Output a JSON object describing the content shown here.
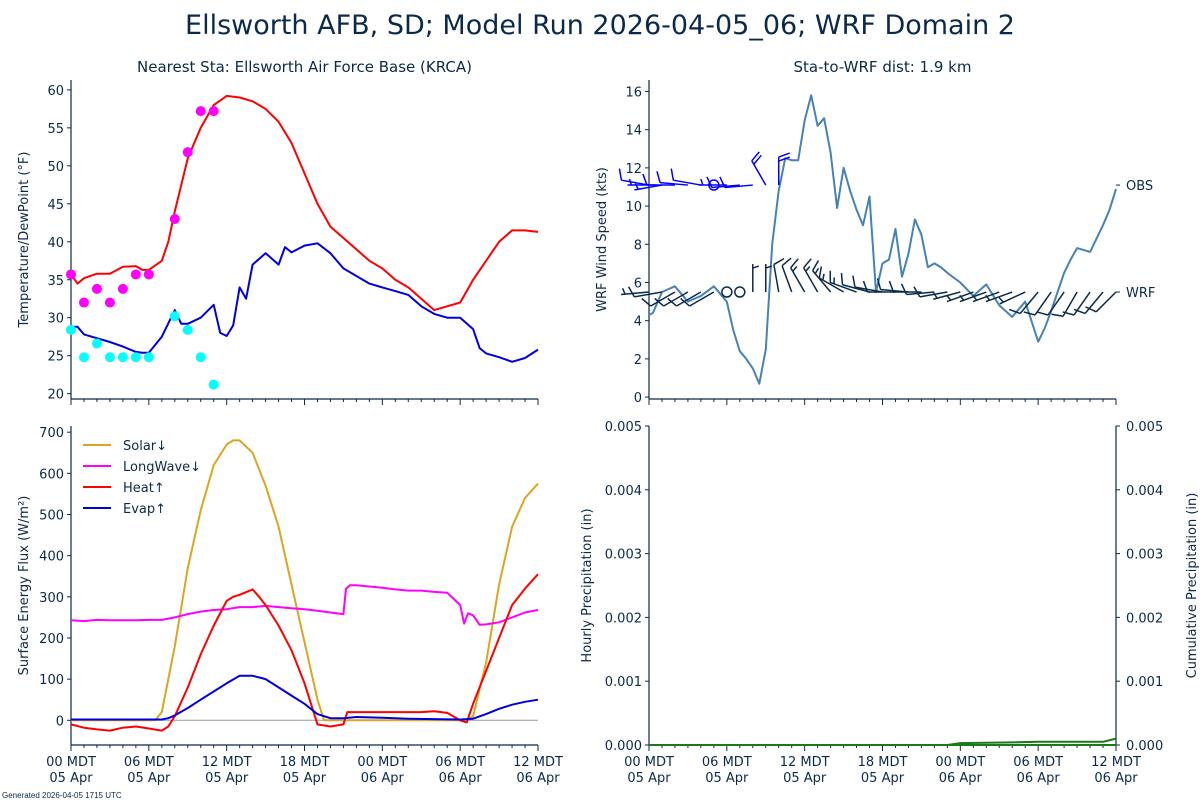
{
  "title": "Ellsworth AFB, SD; Model Run 2026-04-05_06; WRF Domain 2",
  "footer": "Generated 2026-04-05 1715 UTC",
  "colors": {
    "text": "#0b2a4a",
    "temp": "#ff0000",
    "dewpoint": "#0000dd",
    "obs_temp": "#ff00ff",
    "obs_dew": "#00ffff",
    "wind_line": "#4682b4",
    "obs_barb": "#0000ff",
    "wrf_barb": "#0b2a4a",
    "solar": "#daa520",
    "longwave": "#ff00ff",
    "heat": "#ff0000",
    "evap": "#0000dd",
    "zero_line": "#999999",
    "precip": "#1a7a1a"
  },
  "x_axis": {
    "hours_range": [
      0,
      36
    ],
    "ticks": [
      {
        "h": 0,
        "line1": "00 MDT",
        "line2": "05 Apr"
      },
      {
        "h": 6,
        "line1": "06 MDT",
        "line2": "05 Apr"
      },
      {
        "h": 12,
        "line1": "12 MDT",
        "line2": "05 Apr"
      },
      {
        "h": 18,
        "line1": "18 MDT",
        "line2": "05 Apr"
      },
      {
        "h": 24,
        "line1": "00 MDT",
        "line2": "06 Apr"
      },
      {
        "h": 30,
        "line1": "06 MDT",
        "line2": "06 Apr"
      },
      {
        "h": 36,
        "line1": "12 MDT",
        "line2": "06 Apr"
      }
    ]
  },
  "chart_data": [
    {
      "id": "temp-dew",
      "type": "line",
      "title": "Nearest Sta: Ellsworth Air Force Base (KRCA)",
      "xlabel": "",
      "ylabel": "Temperature/DewPoint (°F)",
      "ylim": [
        19.3,
        61.3
      ],
      "yticks": [
        20,
        25,
        30,
        35,
        40,
        45,
        50,
        55,
        60
      ],
      "series": [
        {
          "name": "WRF Temperature",
          "color_key": "temp",
          "x": [
            0,
            0.5,
            1,
            2,
            3,
            4,
            5,
            5.5,
            6,
            7,
            7.5,
            8,
            9,
            10,
            11,
            12,
            13,
            14,
            15,
            16,
            17,
            18,
            19,
            20,
            21,
            22,
            23,
            24,
            25,
            26,
            27,
            28,
            29,
            30,
            30.5,
            31,
            32,
            33,
            34,
            35,
            36
          ],
          "y": [
            35.7,
            34.5,
            35.2,
            35.8,
            35.8,
            36.7,
            36.8,
            36.3,
            36.3,
            37.5,
            40,
            44,
            51,
            55,
            58,
            59.2,
            59,
            58.5,
            57.5,
            55.8,
            53,
            49,
            45,
            42,
            40.5,
            39,
            37.5,
            36.5,
            35,
            34,
            32.5,
            31,
            31.5,
            32,
            33.5,
            35,
            37.5,
            40,
            41.5,
            41.5,
            41.3
          ]
        },
        {
          "name": "WRF DewPoint",
          "color_key": "dewpoint",
          "x": [
            0,
            0.5,
            1,
            2,
            3,
            4,
            5,
            5.5,
            6,
            7,
            8,
            8.5,
            9,
            10,
            11,
            11.5,
            12,
            12.5,
            13,
            13.5,
            14,
            15,
            16,
            16.5,
            17,
            18,
            19,
            20,
            21,
            22,
            23,
            24,
            25,
            26,
            27,
            28,
            29,
            30,
            31,
            31.5,
            32,
            33,
            34,
            35,
            36
          ],
          "y": [
            28.8,
            28.8,
            27.8,
            27.3,
            26.8,
            26.2,
            25.5,
            25.4,
            25.4,
            27.5,
            31,
            29.2,
            29.2,
            30,
            31.7,
            28,
            27.6,
            29,
            34,
            32.5,
            37,
            38.5,
            37,
            39.3,
            38.6,
            39.5,
            39.8,
            38.5,
            36.5,
            35.5,
            34.5,
            34,
            33.5,
            33,
            31.5,
            30.5,
            30,
            30,
            28.5,
            26,
            25.3,
            24.8,
            24.2,
            24.7,
            25.8
          ]
        },
        {
          "name": "Obs Temperature",
          "color_key": "obs_temp",
          "marker": "o",
          "x": [
            0,
            1,
            2,
            3,
            4,
            5,
            6,
            8,
            9,
            10,
            11
          ],
          "y": [
            35.7,
            32,
            33.8,
            32,
            33.8,
            35.7,
            35.7,
            43,
            51.8,
            57.2,
            57.2
          ]
        },
        {
          "name": "Obs DewPoint",
          "color_key": "obs_dew",
          "marker": "o",
          "x": [
            0,
            1,
            2,
            3,
            4,
            5,
            6,
            8,
            9,
            10,
            11
          ],
          "y": [
            28.4,
            24.8,
            26.6,
            24.8,
            24.8,
            24.8,
            24.8,
            30.2,
            28.4,
            24.8,
            21.2
          ]
        }
      ]
    },
    {
      "id": "wind",
      "type": "line",
      "title": "Sta-to-WRF dist: 1.9 km",
      "xlabel": "",
      "ylabel": "WRF Wind Speed (kts)",
      "ylim": [
        -0.1,
        16.6
      ],
      "yticks": [
        0,
        2,
        4,
        6,
        8,
        10,
        12,
        14,
        16
      ],
      "right_labels": [
        {
          "label": "OBS",
          "y": 11.1
        },
        {
          "label": "WRF",
          "y": 5.5
        }
      ],
      "series": [
        {
          "name": "WRF Wind Speed",
          "color_key": "wind_line",
          "x": [
            0,
            0.3,
            1,
            2,
            3,
            4,
            5,
            6,
            6.5,
            7,
            7.5,
            8,
            8.5,
            9,
            9.5,
            10,
            10.5,
            11,
            11.5,
            12,
            12.5,
            13,
            13.5,
            14,
            14.5,
            15,
            15.5,
            16,
            16.5,
            17,
            17.5,
            18,
            18.5,
            19,
            19.5,
            20,
            20.5,
            21,
            21.5,
            22,
            22.5,
            23,
            24,
            25,
            26,
            27,
            28,
            29,
            30,
            30.5,
            31,
            31.5,
            32,
            32.5,
            33,
            34,
            35,
            35.5,
            36
          ],
          "y": [
            4.3,
            4.4,
            5.5,
            5.8,
            5.0,
            5.3,
            5.8,
            5.0,
            3.5,
            2.4,
            2.0,
            1.5,
            0.7,
            2.5,
            8.0,
            10.8,
            12.5,
            12.4,
            12.4,
            14.5,
            15.8,
            14.2,
            14.6,
            12.8,
            9.9,
            12.0,
            10.8,
            9.8,
            9.0,
            10.5,
            5.5,
            7.0,
            7.2,
            8.8,
            6.3,
            7.5,
            9.3,
            8.5,
            6.8,
            7.0,
            6.8,
            6.5,
            6.0,
            5.3,
            5.9,
            4.8,
            4.2,
            5.0,
            2.9,
            3.6,
            4.5,
            5.5,
            6.5,
            7.2,
            7.8,
            7.6,
            9.0,
            9.8,
            10.9
          ]
        },
        {
          "name": "Obs Wind Barbs",
          "color_key": "obs_barb",
          "kind": "barbs",
          "x": [
            0,
            0.5,
            1,
            2,
            3,
            4,
            5,
            6,
            7,
            8,
            9,
            10,
            11
          ],
          "speed_kts": [
            10,
            5,
            5,
            10,
            10,
            10,
            0,
            5,
            10,
            10,
            20,
            20,
            null
          ],
          "direction_deg": [
            280,
            270,
            260,
            270,
            275,
            280,
            0,
            270,
            265,
            265,
            330,
            360,
            null
          ]
        },
        {
          "name": "WRF Wind Barbs",
          "color_key": "wrf_barb",
          "kind": "barbs",
          "x": [
            0,
            1,
            2,
            3,
            4,
            5,
            6,
            7,
            8,
            9,
            10,
            11,
            12,
            13,
            14,
            15,
            16,
            17,
            18,
            19,
            20,
            21,
            22,
            23,
            24,
            25,
            26,
            27,
            28,
            29,
            30,
            31,
            32,
            33,
            34,
            35,
            36
          ],
          "speed_kts": [
            5,
            10,
            10,
            10,
            10,
            10,
            0,
            0,
            5,
            5,
            10,
            10,
            15,
            15,
            15,
            15,
            15,
            10,
            10,
            10,
            10,
            10,
            10,
            10,
            5,
            5,
            5,
            5,
            5,
            5,
            10,
            10,
            10,
            10,
            10,
            10,
            10
          ],
          "direction_deg": [
            265,
            260,
            240,
            240,
            240,
            240,
            0,
            0,
            360,
            360,
            350,
            340,
            330,
            330,
            320,
            300,
            290,
            285,
            280,
            270,
            275,
            270,
            265,
            260,
            255,
            250,
            250,
            250,
            250,
            245,
            220,
            215,
            215,
            210,
            215,
            220,
            225
          ]
        }
      ]
    },
    {
      "id": "energy",
      "type": "line",
      "title": "",
      "xlabel": "",
      "ylabel": "Surface Energy Flux (W/m²)",
      "ylim": [
        -60,
        715
      ],
      "yticks": [
        0,
        100,
        200,
        300,
        400,
        500,
        600,
        700
      ],
      "legend": "top-left",
      "series": [
        {
          "name": "Solar↓",
          "color_key": "solar",
          "x": [
            0,
            6.5,
            7,
            8,
            9,
            10,
            11,
            12,
            12.5,
            13,
            14,
            15,
            16,
            17,
            18,
            19,
            19.5,
            20,
            25,
            30,
            30.5,
            31,
            32,
            33,
            34,
            35,
            36
          ],
          "y": [
            0,
            0,
            20,
            180,
            370,
            510,
            620,
            670,
            680,
            680,
            650,
            570,
            470,
            330,
            190,
            50,
            0,
            0,
            0,
            0,
            0,
            10,
            140,
            330,
            470,
            540,
            575
          ]
        },
        {
          "name": "LongWave↓",
          "color_key": "longwave",
          "x": [
            0,
            1,
            2,
            3,
            4,
            5,
            6,
            7,
            8,
            9,
            10,
            11,
            12,
            13,
            14,
            15,
            16,
            17,
            18,
            19,
            20,
            21,
            21.2,
            21.5,
            22,
            23,
            24,
            25,
            26,
            27,
            28,
            29,
            29.5,
            30,
            30.3,
            30.6,
            31,
            31.5,
            32,
            33,
            34,
            35,
            36
          ],
          "y": [
            243,
            241,
            244,
            243,
            243,
            243,
            244,
            244,
            250,
            258,
            264,
            268,
            270,
            275,
            275,
            278,
            275,
            272,
            270,
            266,
            262,
            258,
            320,
            328,
            328,
            325,
            322,
            318,
            315,
            315,
            312,
            310,
            295,
            280,
            235,
            260,
            255,
            232,
            233,
            238,
            250,
            262,
            268
          ]
        },
        {
          "name": "Heat↑",
          "color_key": "heat",
          "x": [
            0,
            1,
            2,
            3,
            4,
            5,
            6,
            7,
            7.5,
            8,
            9,
            10,
            11,
            12,
            12.5,
            13,
            14,
            14.5,
            15,
            16,
            17,
            18,
            18.5,
            19,
            20,
            21,
            21.3,
            22,
            23,
            24,
            25,
            26,
            27,
            28,
            29,
            30,
            30.5,
            31,
            32,
            33,
            34,
            35,
            36
          ],
          "y": [
            -10,
            -18,
            -22,
            -25,
            -18,
            -15,
            -20,
            -25,
            -15,
            10,
            80,
            160,
            230,
            290,
            300,
            305,
            318,
            300,
            280,
            230,
            170,
            90,
            40,
            -10,
            -15,
            -10,
            20,
            20,
            20,
            20,
            20,
            20,
            20,
            22,
            18,
            0,
            -5,
            40,
            120,
            200,
            280,
            320,
            355
          ]
        },
        {
          "name": "Evap↑",
          "color_key": "evap",
          "x": [
            0,
            6,
            7,
            7.5,
            8,
            9,
            10,
            11,
            12,
            13,
            14,
            15,
            16,
            17,
            18,
            19,
            20,
            21,
            22,
            24,
            26,
            28,
            30,
            31,
            32,
            33,
            34,
            35,
            36
          ],
          "y": [
            2,
            2,
            2,
            5,
            12,
            30,
            50,
            70,
            90,
            108,
            108,
            100,
            80,
            60,
            40,
            15,
            5,
            5,
            8,
            6,
            4,
            3,
            2,
            4,
            15,
            28,
            38,
            45,
            50
          ]
        }
      ]
    },
    {
      "id": "precip",
      "type": "line",
      "title": "",
      "xlabel": "",
      "ylabel": "Hourly Precipitation (in)",
      "ylabel_right": "Cumulative Precipitation (in)",
      "ylim": [
        0,
        0.005
      ],
      "yticks": [
        0.0,
        0.001,
        0.002,
        0.003,
        0.004,
        0.005
      ],
      "ytick_labels": [
        "0.000",
        "0.001",
        "0.002",
        "0.003",
        "0.004",
        "0.005"
      ],
      "series": [
        {
          "name": "Hourly Precipitation",
          "color_key": "precip",
          "x": [
            0,
            36
          ],
          "y": [
            0,
            0
          ]
        },
        {
          "name": "Cumulative Precipitation",
          "color_key": "precip",
          "x": [
            0,
            23,
            24,
            28,
            30,
            35,
            36
          ],
          "y": [
            0,
            0,
            3e-05,
            4e-05,
            5e-05,
            5e-05,
            0.0001
          ]
        }
      ]
    }
  ]
}
